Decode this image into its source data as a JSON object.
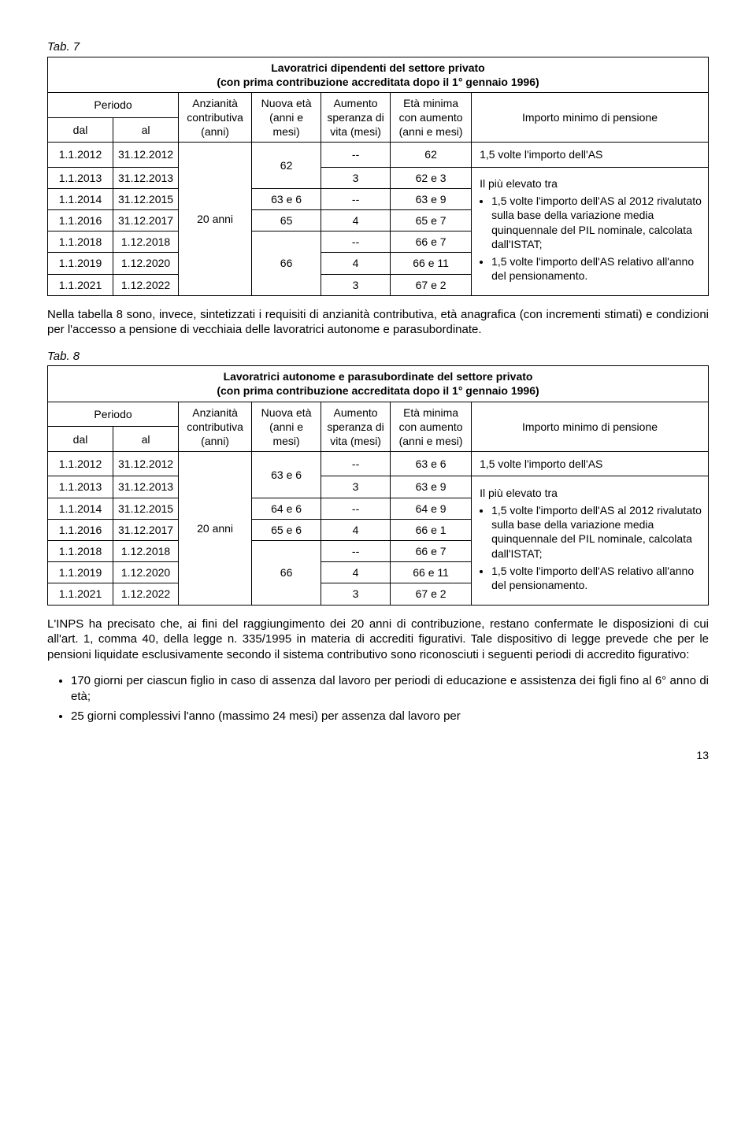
{
  "tab7": {
    "label": "Tab. 7",
    "title_line1": "Lavoratrici dipendenti del settore privato",
    "title_line2": "(con prima contribuzione accreditata dopo il 1° gennaio 1996)",
    "headers": {
      "periodo": "Periodo",
      "dal": "dal",
      "al": "al",
      "anzianita": "Anzianità contributiva (anni)",
      "nuova_eta": "Nuova età (anni e mesi)",
      "aumento": "Aumento speranza di vita (mesi)",
      "eta_minima": "Età minima con aumento (anni e mesi)",
      "importo": "Importo minimo di pensione"
    },
    "anzianita_val": "20 anni",
    "rows": [
      {
        "dal": "1.1.2012",
        "al": "31.12.2012",
        "nuova": "62",
        "aum": "--",
        "eta": "62"
      },
      {
        "dal": "1.1.2013",
        "al": "31.12.2013",
        "aum": "3",
        "eta": "62 e 3"
      },
      {
        "dal": "1.1.2014",
        "al": "31.12.2015",
        "nuova": "63 e 6",
        "aum": "--",
        "eta": "63 e 9"
      },
      {
        "dal": "1.1.2016",
        "al": "31.12.2017",
        "nuova": "65",
        "aum": "4",
        "eta": "65 e 7"
      },
      {
        "dal": "1.1.2018",
        "al": "1.12.2018",
        "aum": "--",
        "eta": "66 e 7"
      },
      {
        "dal": "1.1.2019",
        "al": "1.12.2020",
        "nuova": "66",
        "aum": "4",
        "eta": "66 e 11"
      },
      {
        "dal": "1.1.2021",
        "al": "1.12.2022",
        "aum": "3",
        "eta": "67 e 2"
      }
    ],
    "importo_first": "1,5 volte l'importo dell'AS",
    "importo_intro": "Il più elevato tra",
    "importo_b1": "1,5 volte l'importo dell'AS al 2012 rivalutato sulla base della variazione media quinquennale del PIL nominale, calcolata dall'ISTAT;",
    "importo_b2": "1,5 volte l'importo dell'AS relativo all'anno del pensionamento."
  },
  "para1": "Nella tabella 8 sono, invece, sintetizzati i requisiti di anzianità contributiva, età anagrafica (con incrementi stimati) e condizioni per l'accesso a pensione di vecchiaia delle lavoratrici autonome e parasubordinate.",
  "tab8": {
    "label": "Tab. 8",
    "title_line1": "Lavoratrici autonome e parasubordinate del settore privato",
    "title_line2": "(con prima contribuzione accreditata dopo il 1° gennaio 1996)",
    "headers": {
      "periodo": "Periodo",
      "dal": "dal",
      "al": "al",
      "anzianita": "Anzianità contributiva (anni)",
      "nuova_eta": "Nuova età (anni e mesi)",
      "aumento": "Aumento speranza di vita (mesi)",
      "eta_minima": "Età minima con aumento (anni e mesi)",
      "importo": "Importo minimo di pensione"
    },
    "anzianita_val": "20 anni",
    "rows": [
      {
        "dal": "1.1.2012",
        "al": "31.12.2012",
        "nuova": "63 e 6",
        "aum": "--",
        "eta": "63 e 6"
      },
      {
        "dal": "1.1.2013",
        "al": "31.12.2013",
        "aum": "3",
        "eta": "63 e 9"
      },
      {
        "dal": "1.1.2014",
        "al": "31.12.2015",
        "nuova": "64 e 6",
        "aum": "--",
        "eta": "64 e 9"
      },
      {
        "dal": "1.1.2016",
        "al": "31.12.2017",
        "nuova": "65 e 6",
        "aum": "4",
        "eta": "66 e 1"
      },
      {
        "dal": "1.1.2018",
        "al": "1.12.2018",
        "aum": "--",
        "eta": "66 e 7"
      },
      {
        "dal": "1.1.2019",
        "al": "1.12.2020",
        "nuova": "66",
        "aum": "4",
        "eta": "66 e 11"
      },
      {
        "dal": "1.1.2021",
        "al": "1.12.2022",
        "aum": "3",
        "eta": "67 e 2"
      }
    ],
    "importo_first": "1,5 volte l'importo dell'AS",
    "importo_intro": "Il più elevato tra",
    "importo_b1": "1,5 volte l'importo dell'AS al 2012 rivalutato sulla base della variazione media quinquennale del PIL nominale, calcolata dall'ISTAT;",
    "importo_b2": "1,5 volte l'importo dell'AS relativo all'anno del pensionamento."
  },
  "para2": "L'INPS ha precisato che, ai fini del raggiungimento dei 20 anni di contribuzione, restano confermate le disposizioni di cui all'art. 1, comma 40, della legge n. 335/1995 in materia di accrediti figurativi. Tale dispositivo di legge prevede che per le pensioni liquidate esclusivamente secondo il sistema contributivo sono riconosciuti i seguenti periodi di accredito figurativo:",
  "bullets": [
    "170 giorni per ciascun figlio in caso di assenza dal lavoro per periodi di educazione e assistenza dei figli fino al 6° anno di età;",
    "25 giorni complessivi l'anno (massimo 24 mesi) per assenza dal lavoro per"
  ],
  "page_number": "13"
}
